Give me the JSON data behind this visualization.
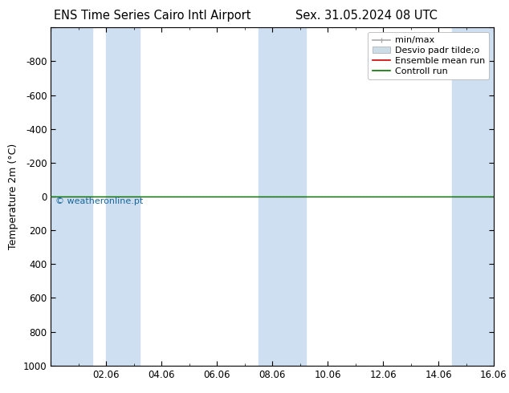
{
  "title_left": "ENS Time Series Cairo Intl Airport",
  "title_right": "Sex. 31.05.2024 08 UTC",
  "ylabel": "Temperature 2m (°C)",
  "watermark": "© weatheronline.pt",
  "xlim_min": 0,
  "xlim_max": 16,
  "ymin": -1000,
  "ymax": 1000,
  "yticks": [
    -1000,
    -800,
    -600,
    -400,
    -200,
    0,
    200,
    400,
    600,
    800,
    1000
  ],
  "xtick_positions": [
    0,
    2,
    4,
    6,
    8,
    10,
    12,
    14,
    16
  ],
  "xtick_labels": [
    "",
    "02.06",
    "04.06",
    "06.06",
    "08.06",
    "10.06",
    "12.06",
    "14.06",
    "16.06"
  ],
  "shaded_bands": [
    [
      0.0,
      1.5
    ],
    [
      2.0,
      3.2
    ],
    [
      7.5,
      9.2
    ],
    [
      14.5,
      16.0
    ]
  ],
  "shade_color": "#cddff0",
  "green_line_color": "#007700",
  "red_line_color": "#cc0000",
  "watermark_color": "#1a6699",
  "background_color": "#ffffff",
  "title_fontsize": 10.5,
  "ylabel_fontsize": 9,
  "tick_fontsize": 8.5,
  "legend_fontsize": 8,
  "watermark_fontsize": 8
}
